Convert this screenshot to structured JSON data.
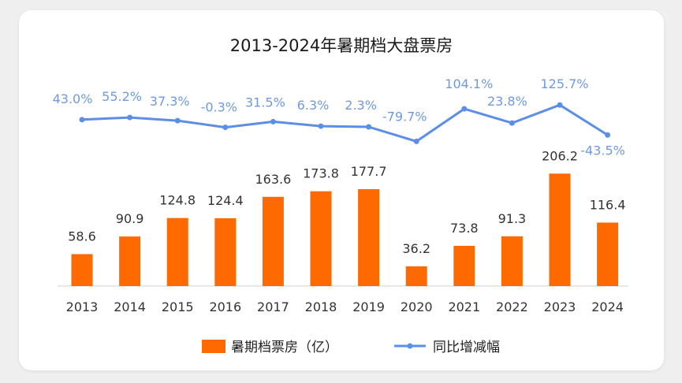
{
  "chart_data": {
    "type": "bar",
    "title": "2013-2024年暑期档大盘票房",
    "categories": [
      "2013",
      "2014",
      "2015",
      "2016",
      "2017",
      "2018",
      "2019",
      "2020",
      "2021",
      "2022",
      "2023",
      "2024"
    ],
    "series": [
      {
        "name": "暑期档票房（亿）",
        "type": "bar",
        "values": [
          58.6,
          90.9,
          124.8,
          124.4,
          163.6,
          173.8,
          177.7,
          36.2,
          73.8,
          91.3,
          206.2,
          116.4
        ],
        "labels": [
          "58.6",
          "90.9",
          "124.8",
          "124.4",
          "163.6",
          "173.8",
          "177.7",
          "36.2",
          "73.8",
          "91.3",
          "206.2",
          "116.4"
        ]
      },
      {
        "name": "同比增减幅",
        "type": "line",
        "values": [
          43.0,
          55.2,
          37.3,
          -0.3,
          31.5,
          6.3,
          2.3,
          -79.7,
          104.1,
          23.8,
          125.7,
          -43.5
        ],
        "labels": [
          "43.0%",
          "55.2%",
          "37.3%",
          "-0.3%",
          "31.5%",
          "6.3%",
          "2.3%",
          "-79.7%",
          "104.1%",
          "23.8%",
          "125.7%",
          "-43.5%"
        ]
      }
    ],
    "colors": {
      "bar": "#ff6a00",
      "line": "#5b8ee8",
      "line_label": "#6f9ae0"
    },
    "legend_position": "bottom",
    "grid": false
  }
}
